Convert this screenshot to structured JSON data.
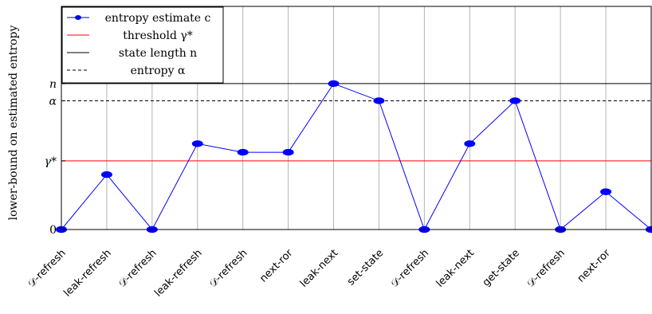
{
  "chart_data": {
    "type": "line",
    "ylabel": "lower-bound on estimated entropy",
    "xlabel": "",
    "categories": [
      "𝒟-refresh",
      "leak-refresh",
      "𝒟-refresh",
      "leak-refresh",
      "𝒟-refresh",
      "next-ror",
      "leak-next",
      "set-state",
      "𝒟-refresh",
      "leak-next",
      "get-state",
      "𝒟-refresh",
      "next-ror",
      ""
    ],
    "y_ticks": [
      {
        "label": "0",
        "value": 0
      },
      {
        "label": "γ*",
        "value": 4
      },
      {
        "label": "α",
        "value": 7.5
      },
      {
        "label": "n",
        "value": 8.5
      }
    ],
    "ylim": [
      0,
      13
    ],
    "grid": "vertical",
    "legend_position": "top-left",
    "series": [
      {
        "name": "entropy estimate c",
        "color": "#0000ff",
        "marker": "ellipse",
        "values": [
          0,
          3.2,
          0,
          5,
          4.5,
          4.5,
          8.5,
          7.5,
          0,
          5,
          7.5,
          0,
          2.2,
          0
        ]
      }
    ],
    "reference_lines": [
      {
        "name": "threshold γ*",
        "value": 4,
        "color": "#ff0000",
        "style": "solid"
      },
      {
        "name": "state length n",
        "value": 8.5,
        "color": "#000000",
        "style": "solid"
      },
      {
        "name": "entropy α",
        "value": 7.5,
        "color": "#000000",
        "style": "dashed"
      }
    ]
  }
}
